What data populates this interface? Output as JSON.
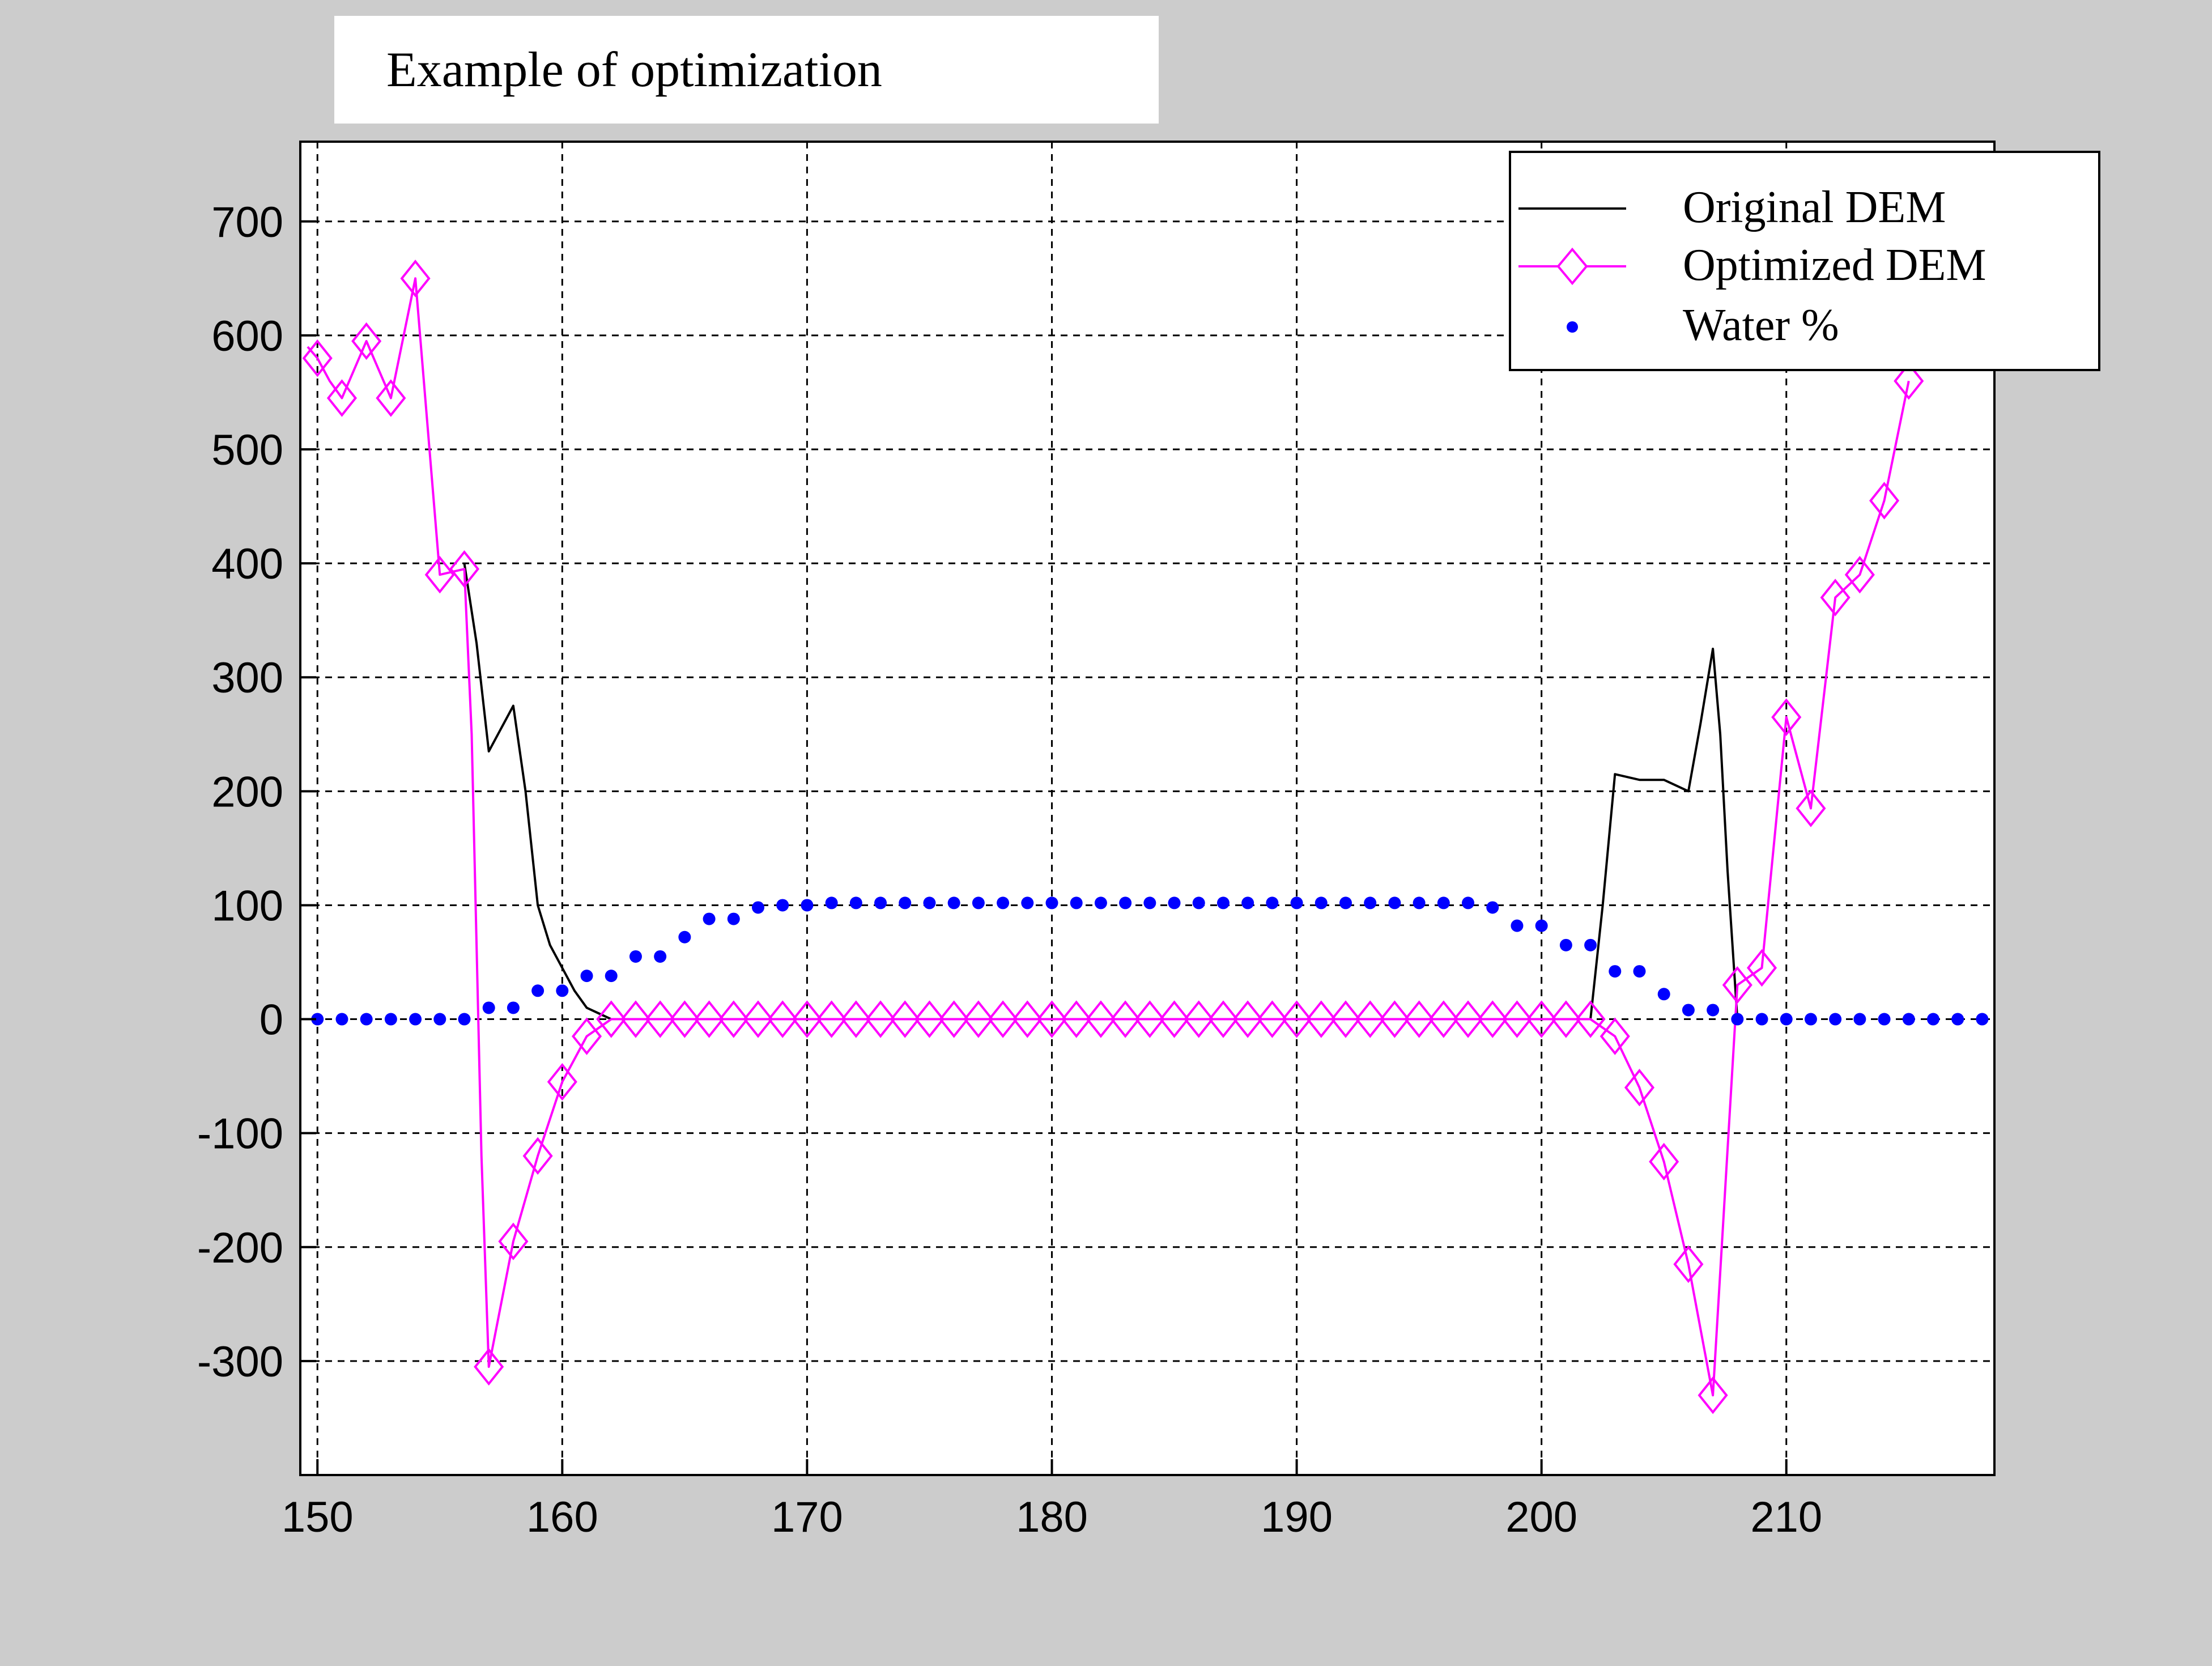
{
  "colors": {
    "figure_background": "#cccccc",
    "axes_background": "#ffffff",
    "grid": "#000000",
    "original": "#000000",
    "optimized": "#ff00ff",
    "water": "#0000ff"
  },
  "chart_data": {
    "type": "line",
    "title": "Example of optimization",
    "xlabel": "",
    "ylabel": "",
    "xlim": [
      149.3,
      218.5
    ],
    "ylim": [
      -400,
      770
    ],
    "xticks": [
      150,
      160,
      170,
      180,
      190,
      200,
      210
    ],
    "yticks": [
      -300,
      -200,
      -100,
      0,
      100,
      200,
      300,
      400,
      500,
      600,
      700
    ],
    "grid": true,
    "legend_position": "top-right",
    "series": [
      {
        "name": "Original DEM",
        "style": "line",
        "x": [
          156,
          156.5,
          157,
          157.5,
          158,
          158.5,
          159,
          159.5,
          160,
          160.5,
          161,
          161.5,
          162,
          162.5,
          201.5,
          202,
          202.5,
          203,
          204,
          205,
          206,
          206.5,
          207,
          207.3,
          207.6,
          208
        ],
        "y": [
          400,
          330,
          235,
          255,
          275,
          200,
          100,
          65,
          45,
          25,
          10,
          5,
          0,
          0,
          0,
          0,
          100,
          215,
          210,
          210,
          200,
          260,
          325,
          250,
          130,
          0
        ]
      },
      {
        "name": "Optimized DEM",
        "style": "line-diamond",
        "x": [
          149.6,
          150,
          150.5,
          151,
          152,
          153,
          154,
          155,
          156,
          156.3,
          156.7,
          157,
          158,
          159,
          160,
          161,
          162,
          163,
          164,
          165,
          166,
          167,
          168,
          169,
          170,
          171,
          172,
          173,
          174,
          175,
          176,
          177,
          178,
          179,
          180,
          181,
          182,
          183,
          184,
          185,
          186,
          187,
          188,
          189,
          190,
          191,
          192,
          193,
          194,
          195,
          196,
          197,
          198,
          199,
          200,
          201,
          202,
          203,
          204,
          205,
          206,
          207,
          208,
          209,
          210,
          211,
          212,
          213,
          214,
          215
        ],
        "y": [
          590,
          580,
          560,
          545,
          595,
          545,
          650,
          390,
          395,
          250,
          -120,
          -305,
          -195,
          -120,
          -55,
          -15,
          0,
          0,
          0,
          0,
          0,
          0,
          0,
          0,
          0,
          0,
          0,
          0,
          0,
          0,
          0,
          0,
          0,
          0,
          0,
          0,
          0,
          0,
          0,
          0,
          0,
          0,
          0,
          0,
          0,
          0,
          0,
          0,
          0,
          0,
          0,
          0,
          0,
          0,
          0,
          0,
          0,
          -15,
          -60,
          -125,
          -215,
          -330,
          30,
          45,
          265,
          185,
          370,
          390,
          455,
          560
        ]
      },
      {
        "name": "Water %",
        "style": "dots",
        "x": [
          150,
          151,
          152,
          153,
          154,
          155,
          156,
          157,
          158,
          159,
          160,
          161,
          162,
          163,
          164,
          165,
          166,
          167,
          168,
          169,
          170,
          171,
          172,
          173,
          174,
          175,
          176,
          177,
          178,
          179,
          180,
          181,
          182,
          183,
          184,
          185,
          186,
          187,
          188,
          189,
          190,
          191,
          192,
          193,
          194,
          195,
          196,
          197,
          198,
          199,
          200,
          201,
          202,
          203,
          204,
          205,
          206,
          207,
          208,
          209,
          210,
          211,
          212,
          213,
          214,
          215,
          216,
          217,
          218
        ],
        "y": [
          0,
          0,
          0,
          0,
          0,
          0,
          0,
          10,
          10,
          25,
          25,
          38,
          38,
          55,
          55,
          72,
          88,
          88,
          98,
          100,
          100,
          102,
          102,
          102,
          102,
          102,
          102,
          102,
          102,
          102,
          102,
          102,
          102,
          102,
          102,
          102,
          102,
          102,
          102,
          102,
          102,
          102,
          102,
          102,
          102,
          102,
          102,
          102,
          98,
          82,
          82,
          65,
          65,
          42,
          42,
          22,
          8,
          8,
          0,
          0,
          0,
          0,
          0,
          0,
          0,
          0,
          0,
          0,
          0
        ]
      }
    ]
  }
}
